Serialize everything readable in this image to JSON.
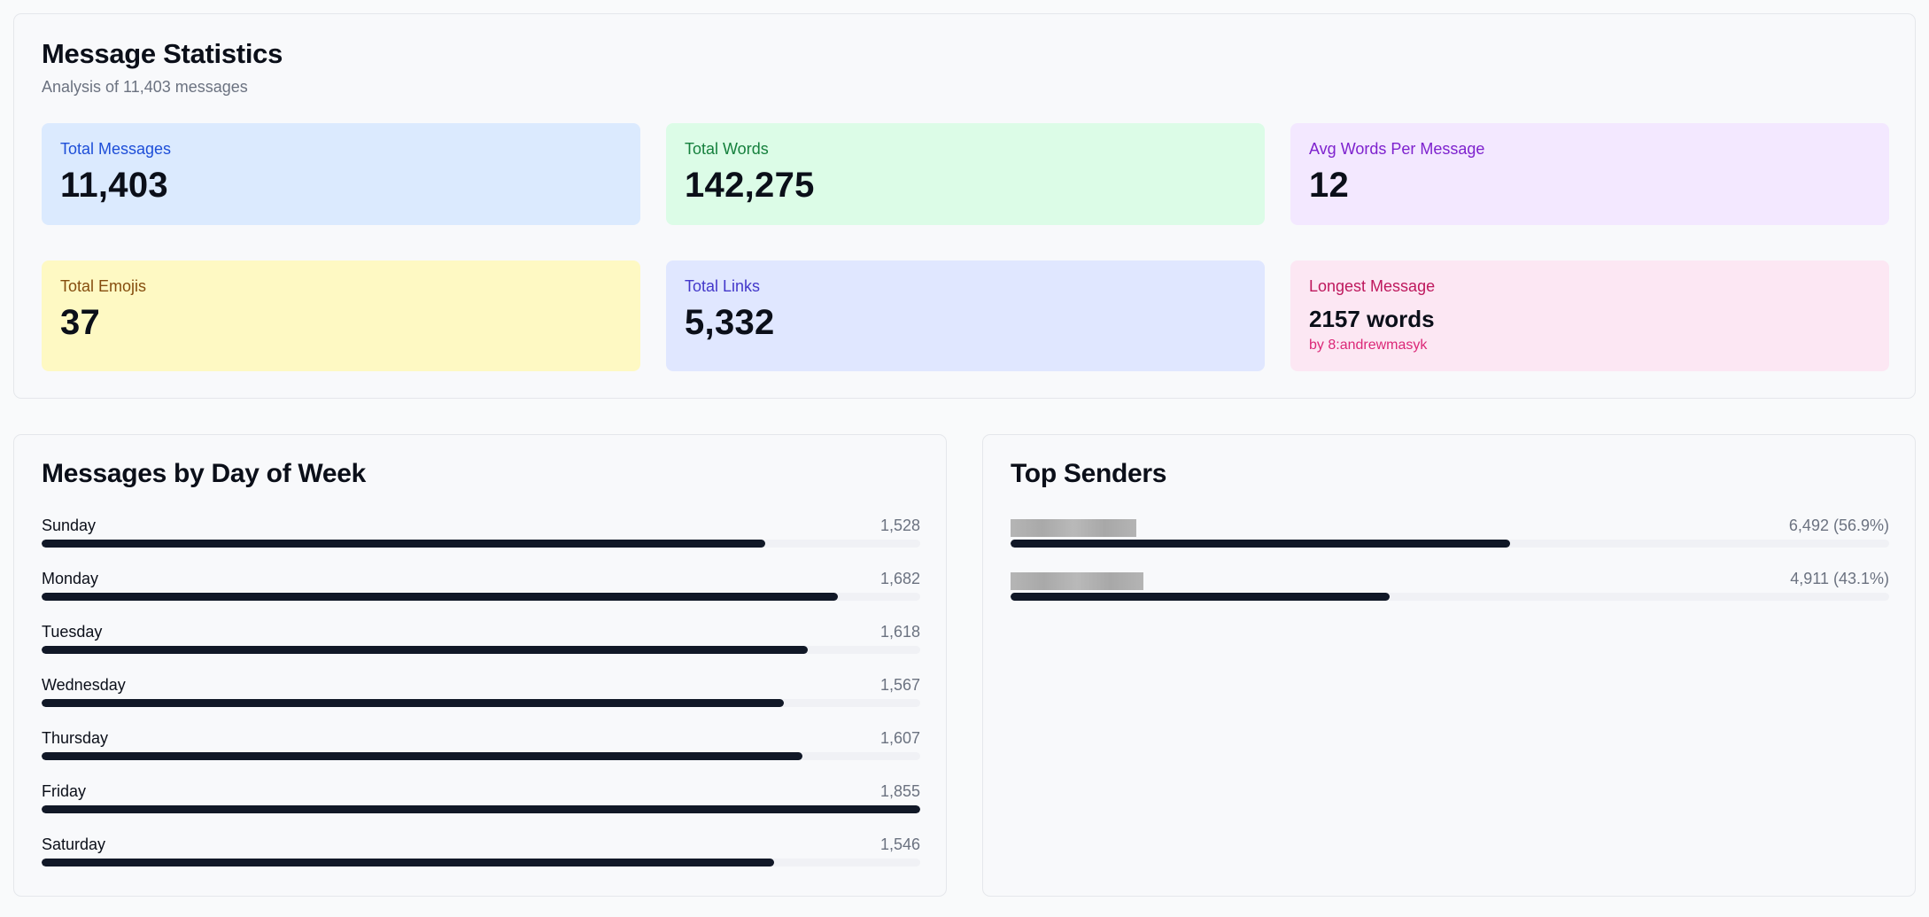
{
  "stats_card": {
    "title": "Message Statistics",
    "subtitle": "Analysis of 11,403 messages",
    "items": [
      {
        "label": "Total Messages",
        "value": "11,403"
      },
      {
        "label": "Total Words",
        "value": "142,275"
      },
      {
        "label": "Avg Words Per Message",
        "value": "12"
      },
      {
        "label": "Total Emojis",
        "value": "37"
      },
      {
        "label": "Total Links",
        "value": "5,332"
      },
      {
        "label": "Longest Message",
        "value": "2157 words",
        "sub": "by 8:andrewmasyk"
      }
    ],
    "colors": {
      "blue": "#dbeafe",
      "green": "#dcfce7",
      "purple": "#f3e8ff",
      "yellow": "#fef9c3",
      "indigo": "#e0e7ff",
      "pink": "#fce7f3"
    }
  },
  "days_card": {
    "title": "Messages by Day of Week",
    "days": [
      {
        "name": "Sunday",
        "count": "1,528",
        "value": 1528
      },
      {
        "name": "Monday",
        "count": "1,682",
        "value": 1682
      },
      {
        "name": "Tuesday",
        "count": "1,618",
        "value": 1618
      },
      {
        "name": "Wednesday",
        "count": "1,567",
        "value": 1567
      },
      {
        "name": "Thursday",
        "count": "1,607",
        "value": 1607
      },
      {
        "name": "Friday",
        "count": "1,855",
        "value": 1855
      },
      {
        "name": "Saturday",
        "count": "1,546",
        "value": 1546
      }
    ],
    "max": 1855
  },
  "senders_card": {
    "title": "Top Senders",
    "senders": [
      {
        "count": "6,492 (56.9%)",
        "percent": 56.9
      },
      {
        "count": "4,911 (43.1%)",
        "percent": 43.1
      }
    ]
  }
}
